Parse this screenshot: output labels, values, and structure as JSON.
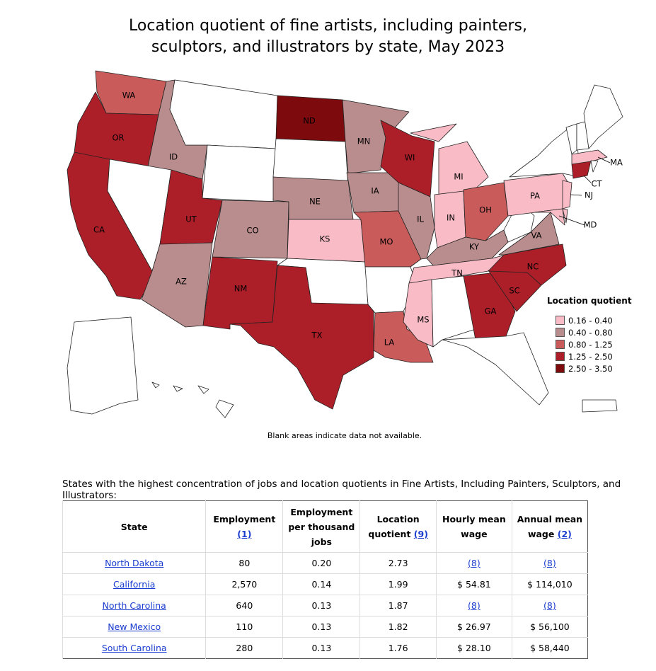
{
  "title_line1": "Location quotient of fine artists, including painters,",
  "title_line2": "sculptors, and illustrators by state, May 2023",
  "map_note": "Blank areas indicate data not available.",
  "colors": {
    "bin1": "#f9bcc6",
    "bin2": "#b98d8d",
    "bin3": "#c95b5b",
    "bin4": "#ad1f28",
    "bin5": "#7d0a0c",
    "blank": "#ffffff"
  },
  "legend": {
    "title": "Location quotient",
    "items": [
      {
        "label": "0.16 - 0.40",
        "color": "#f9bcc6"
      },
      {
        "label": "0.40 - 0.80",
        "color": "#b98d8d"
      },
      {
        "label": "0.80 - 1.25",
        "color": "#c95b5b"
      },
      {
        "label": "1.25 - 2.50",
        "color": "#ad1f28"
      },
      {
        "label": "2.50 - 3.50",
        "color": "#7d0a0c"
      }
    ]
  },
  "states": {
    "WA": {
      "label": "WA",
      "bin": 3
    },
    "OR": {
      "label": "OR",
      "bin": 4
    },
    "CA": {
      "label": "CA",
      "bin": 4
    },
    "ID": {
      "label": "ID",
      "bin": 2
    },
    "NV": {
      "label": "",
      "bin": 0
    },
    "UT": {
      "label": "UT",
      "bin": 4
    },
    "AZ": {
      "label": "AZ",
      "bin": 2
    },
    "MT": {
      "label": "",
      "bin": 0
    },
    "WY": {
      "label": "",
      "bin": 0
    },
    "CO": {
      "label": "CO",
      "bin": 2
    },
    "NM": {
      "label": "NM",
      "bin": 4
    },
    "ND": {
      "label": "ND",
      "bin": 5
    },
    "SD": {
      "label": "",
      "bin": 0
    },
    "NE": {
      "label": "NE",
      "bin": 2
    },
    "KS": {
      "label": "KS",
      "bin": 1
    },
    "OK": {
      "label": "",
      "bin": 0
    },
    "TX": {
      "label": "TX",
      "bin": 4
    },
    "MN": {
      "label": "MN",
      "bin": 2
    },
    "IA": {
      "label": "IA",
      "bin": 2
    },
    "MO": {
      "label": "MO",
      "bin": 3
    },
    "AR": {
      "label": "",
      "bin": 0
    },
    "LA": {
      "label": "LA",
      "bin": 3
    },
    "WI": {
      "label": "WI",
      "bin": 4
    },
    "IL": {
      "label": "IL",
      "bin": 2
    },
    "MI": {
      "label": "MI",
      "bin": 1
    },
    "IN": {
      "label": "IN",
      "bin": 1
    },
    "OH": {
      "label": "OH",
      "bin": 3
    },
    "KY": {
      "label": "KY",
      "bin": 2
    },
    "TN": {
      "label": "TN",
      "bin": 1
    },
    "MS": {
      "label": "MS",
      "bin": 1
    },
    "AL": {
      "label": "",
      "bin": 0
    },
    "GA": {
      "label": "GA",
      "bin": 4
    },
    "FL": {
      "label": "",
      "bin": 0
    },
    "SC": {
      "label": "SC",
      "bin": 4
    },
    "NC": {
      "label": "NC",
      "bin": 4
    },
    "VA": {
      "label": "VA",
      "bin": 2
    },
    "WV": {
      "label": "",
      "bin": 0
    },
    "PA": {
      "label": "PA",
      "bin": 1
    },
    "NY": {
      "label": "",
      "bin": 0
    },
    "NJ": {
      "label": "NJ",
      "bin": 1
    },
    "MD": {
      "label": "MD",
      "bin": 1
    },
    "DE": {
      "label": "",
      "bin": 1
    },
    "CT": {
      "label": "CT",
      "bin": 4
    },
    "MA": {
      "label": "MA",
      "bin": 1
    },
    "RI": {
      "label": "",
      "bin": 0
    },
    "VT": {
      "label": "",
      "bin": 0
    },
    "NH": {
      "label": "",
      "bin": 0
    },
    "ME": {
      "label": "",
      "bin": 0
    },
    "AK": {
      "label": "",
      "bin": 0
    },
    "HI": {
      "label": "",
      "bin": 0
    },
    "PR": {
      "label": "",
      "bin": 0
    }
  },
  "table": {
    "caption": "States with the highest concentration of jobs and location quotients in Fine Artists, Including Painters, Sculptors, and Illustrators:",
    "headers": {
      "state": "State",
      "employment": "Employment",
      "employment_fn": "(1)",
      "per_thousand": "Employment per thousand jobs",
      "lq": "Location quotient",
      "lq_fn": "(9)",
      "hourly": "Hourly mean wage",
      "annual": "Annual mean wage",
      "annual_fn": "(2)"
    },
    "rows": [
      {
        "state": "North Dakota",
        "employment": "80",
        "per_thousand": "0.20",
        "lq": "2.73",
        "hourly": "(8)",
        "annual": "(8)"
      },
      {
        "state": "California",
        "employment": "2,570",
        "per_thousand": "0.14",
        "lq": "1.99",
        "hourly": "$ 54.81",
        "annual": "$ 114,010"
      },
      {
        "state": "North Carolina",
        "employment": "640",
        "per_thousand": "0.13",
        "lq": "1.87",
        "hourly": "(8)",
        "annual": "(8)"
      },
      {
        "state": "New Mexico",
        "employment": "110",
        "per_thousand": "0.13",
        "lq": "1.82",
        "hourly": "$ 26.97",
        "annual": "$ 56,100"
      },
      {
        "state": "South Carolina",
        "employment": "280",
        "per_thousand": "0.13",
        "lq": "1.76",
        "hourly": "$ 28.10",
        "annual": "$ 58,440"
      }
    ]
  }
}
